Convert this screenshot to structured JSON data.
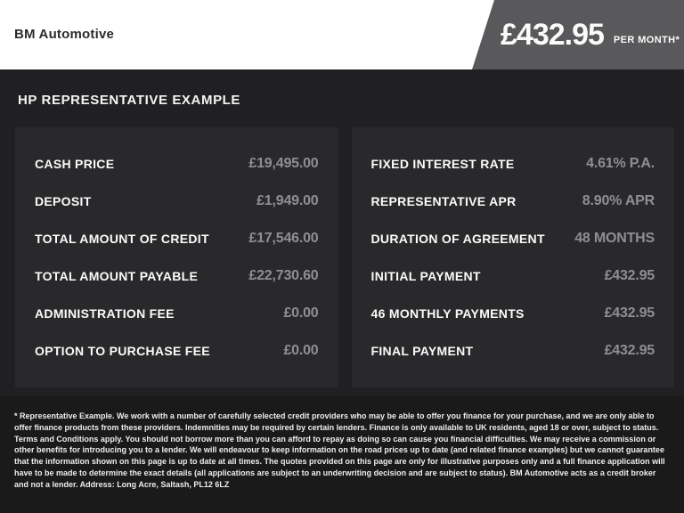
{
  "header": {
    "dealer_name": "BM Automotive",
    "price_banner": {
      "amount": "£432.95",
      "period": "PER MONTH*"
    }
  },
  "finance": {
    "section_title": "HP REPRESENTATIVE EXAMPLE",
    "left_rows": [
      {
        "label": "CASH PRICE",
        "value": "£19,495.00"
      },
      {
        "label": "DEPOSIT",
        "value": "£1,949.00"
      },
      {
        "label": "TOTAL AMOUNT OF CREDIT",
        "value": "£17,546.00"
      },
      {
        "label": "TOTAL AMOUNT PAYABLE",
        "value": "£22,730.60"
      },
      {
        "label": "ADMINISTRATION FEE",
        "value": "£0.00"
      },
      {
        "label": "OPTION TO PURCHASE FEE",
        "value": "£0.00"
      }
    ],
    "right_rows": [
      {
        "label": "FIXED INTEREST RATE",
        "value": "4.61% P.A."
      },
      {
        "label": "REPRESENTATIVE APR",
        "value": "8.90% APR"
      },
      {
        "label": "DURATION OF AGREEMENT",
        "value": "48 MONTHS"
      },
      {
        "label": "INITIAL PAYMENT",
        "value": "£432.95"
      },
      {
        "label": "46 MONTHLY PAYMENTS",
        "value": "£432.95"
      },
      {
        "label": "FINAL PAYMENT",
        "value": "£432.95"
      }
    ]
  },
  "footer": {
    "disclaimer": "* Representative Example. We work with a number of carefully selected credit providers who may be able to offer you finance for your purchase, and we are only able to offer finance products from these providers. Indemnities may be required by certain lenders. Finance is only available to UK residents, aged 18 or over, subject to status. Terms and Conditions apply. You should not borrow more than you can afford to repay as doing so can cause you financial difficulties. We may receive a commission or other benefits for introducing you to a lender. We will endeavour to keep information on the road prices up to date (and related finance examples) but we cannot guarantee that the information shown on this page is up to date at all times. The quotes provided on this page are only for illustrative purposes only and a full finance application will have to be made to determine the exact details (all applications are subject to an underwriting decision and are subject to status). BM Automotive acts as a credit broker and not a lender. Address: Long Acre, Saltash, PL12 6LZ"
  },
  "colors": {
    "banner_background": "#59595b",
    "main_background": "#202022",
    "panel_background": "#29292b",
    "footer_background": "#1a1a1a",
    "value_text": "#8f8f91"
  }
}
